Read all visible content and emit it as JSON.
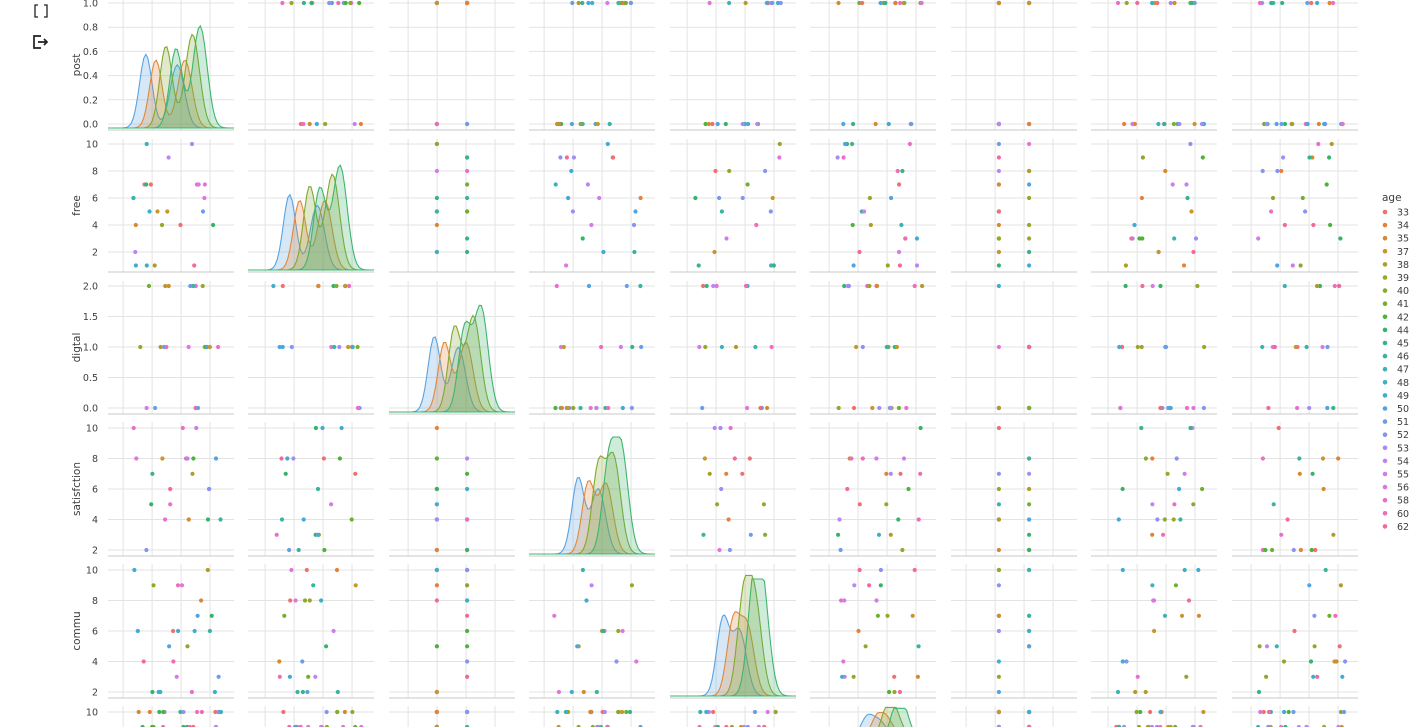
{
  "toolbar": {
    "icons": [
      "cell-brackets-icon",
      "output-icon"
    ]
  },
  "chart_data": {
    "type": "pairplot",
    "hue_title": "age",
    "hue_levels": [
      "33",
      "34",
      "35",
      "37",
      "38",
      "39",
      "40",
      "41",
      "42",
      "44",
      "45",
      "46",
      "47",
      "48",
      "49",
      "50",
      "51",
      "52",
      "53",
      "54",
      "55",
      "56",
      "58",
      "60",
      "62"
    ],
    "hue_colors": [
      "#f0706d",
      "#e8803c",
      "#d58a30",
      "#c5972c",
      "#b09c2a",
      "#9ba52a",
      "#88ab2e",
      "#70b02f",
      "#4db23a",
      "#35b366",
      "#36b488",
      "#38b49f",
      "#3bb3b6",
      "#3cb0c7",
      "#41aad6",
      "#51a3e3",
      "#6c9cec",
      "#8a93f0",
      "#a38cf3",
      "#bd85f2",
      "#d27cec",
      "#e274dd",
      "#eb6fca",
      "#f06cb4",
      "#f3699c"
    ],
    "row_variables": [
      "post",
      "free",
      "digtal",
      "satisfction",
      "commu",
      ""
    ],
    "column_count": 9,
    "axes": {
      "post": {
        "ticks": [
          "0.0",
          "0.2",
          "0.4",
          "0.6",
          "0.8",
          "1.0"
        ],
        "range": [
          0,
          1
        ]
      },
      "free": {
        "ticks": [
          "2",
          "4",
          "6",
          "8",
          "10"
        ],
        "range": [
          1,
          10
        ]
      },
      "digtal": {
        "ticks": [
          "0.0",
          "0.5",
          "1.0",
          "1.5",
          "2.0"
        ],
        "range": [
          0,
          2
        ]
      },
      "satisfction": {
        "ticks": [
          "2",
          "4",
          "6",
          "8",
          "10"
        ],
        "range": [
          2,
          10
        ]
      },
      "commu": {
        "ticks": [
          "2",
          "4",
          "6",
          "8",
          "10"
        ],
        "range": [
          2,
          10
        ]
      },
      "last": {
        "ticks": [
          "10"
        ],
        "range": [
          2,
          10
        ]
      }
    },
    "legend_position": "right",
    "grid": true
  }
}
